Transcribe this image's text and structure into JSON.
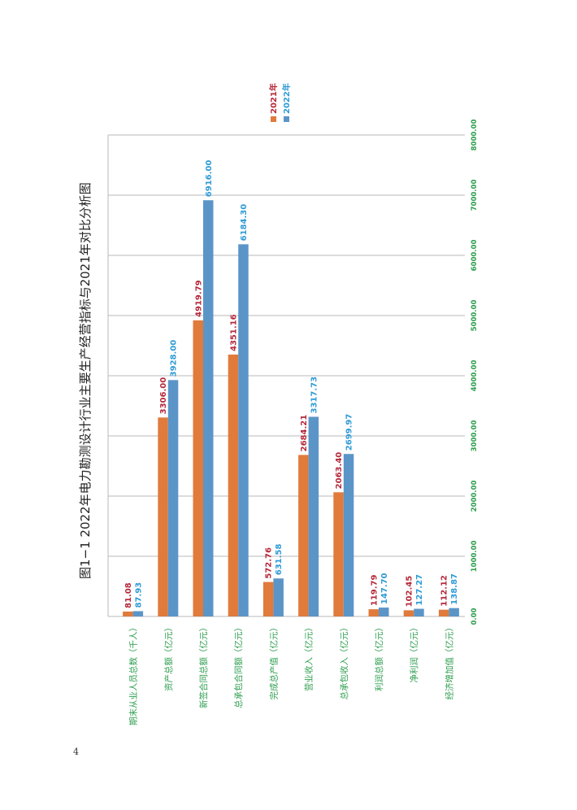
{
  "page": {
    "number": "4"
  },
  "colors": {
    "series_2021": "#E07B3C",
    "series_2022": "#5B95C8",
    "label_2021": "#B5283A",
    "label_2022": "#2E9BD6",
    "axis_text": "#2E9E4F",
    "grid": "#B8B8B8"
  },
  "chart_data": {
    "type": "bar",
    "orientation": "vertical-rotated",
    "title": "图1−1  2022年电力勘测设计行业主要生产经营指标与2021年对比分析图",
    "categories": [
      "期末从业人员总数（千人）",
      "资产总额（亿元）",
      "新签合同总额（亿元）",
      "总承包合同额（亿元）",
      "完成总产值（亿元）",
      "营业收入（亿元）",
      "总承包收入（亿元）",
      "利润总额（亿元）",
      "净利润（亿元）",
      "经济增加值（亿元）"
    ],
    "series": [
      {
        "name": "2021年",
        "values": [
          81.08,
          3306.0,
          4919.79,
          4351.16,
          572.76,
          2684.21,
          2063.4,
          119.79,
          102.45,
          112.12
        ],
        "labels": [
          "81.08",
          "3306.00",
          "4919.79",
          "4351.16",
          "572.76",
          "2684.21",
          "2063.40",
          "119.79",
          "102.45",
          "112.12"
        ]
      },
      {
        "name": "2022年",
        "values": [
          87.93,
          3928.0,
          6916.0,
          6184.3,
          631.58,
          3317.73,
          2699.97,
          147.7,
          127.27,
          138.87
        ],
        "labels": [
          "87.93",
          "3928.00",
          "6916.00",
          "6184.30",
          "631.58",
          "3317.73",
          "2699.97",
          "147.70",
          "127.27",
          "138.87"
        ]
      }
    ],
    "ylim": [
      0,
      8000
    ],
    "ticks": [
      0,
      1000,
      2000,
      3000,
      4000,
      5000,
      6000,
      7000,
      8000
    ],
    "tick_labels": [
      "0.00",
      "1000.00",
      "2000.00",
      "3000.00",
      "4000.00",
      "5000.00",
      "6000.00",
      "7000.00",
      "8000.00"
    ],
    "grid": true,
    "legend_position": "top"
  }
}
